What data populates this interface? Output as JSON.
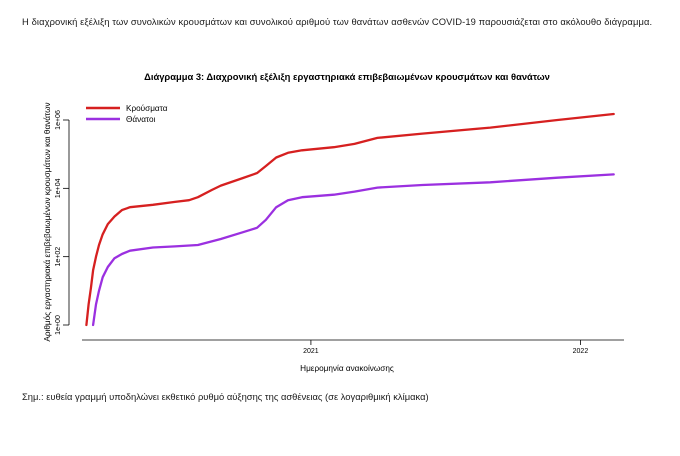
{
  "intro_text": "Η διαχρονική εξέλιξη των συνολικών κρουσμάτων και συνολικού αριθμού των θανάτων ασθενών COVID-19 παρουσιάζεται στο ακόλουθο διάγραμμα.",
  "note_text": "Σημ.: ευθεία γραμμή υποδηλώνει εκθετικό ρυθμό αύξησης της ασθένειας (σε λογαριθμική κλίμακα)",
  "colors": {
    "cases": "#d62020",
    "deaths": "#9b30e0",
    "axis": "#000000"
  },
  "chart_data": {
    "type": "line",
    "title": "Διάγραμμα 3: Διαχρονική εξέλιξη εργαστηριακά επιβεβαιωμένων κρουσμάτων και θανάτων",
    "xlabel": "Ημερομηνία ανακοίνωσης",
    "ylabel": "Αριθμός εργαστηριακά επιβεβαιωμένων κρουσμάτων και θανάτων",
    "y_scale": "log10",
    "ylim": [
      1,
      1000000
    ],
    "xlim": [
      "2020-02-26",
      "2022-03-01"
    ],
    "x_ticks": [
      {
        "date": "2021-01-01",
        "label": "2021"
      },
      {
        "date": "2022-01-01",
        "label": "2022"
      }
    ],
    "y_ticks": [
      {
        "value": 1,
        "label": "1e+00"
      },
      {
        "value": 100,
        "label": "1e+02"
      },
      {
        "value": 10000,
        "label": "1e+04"
      },
      {
        "value": 1000000,
        "label": "1e+06"
      }
    ],
    "grid": false,
    "legend_position": "top-left",
    "series": [
      {
        "name": "Κρούσματα",
        "points": [
          [
            "2020-03-03",
            1
          ],
          [
            "2020-03-06",
            4
          ],
          [
            "2020-03-09",
            12
          ],
          [
            "2020-03-12",
            40
          ],
          [
            "2020-03-16",
            100
          ],
          [
            "2020-03-20",
            220
          ],
          [
            "2020-03-25",
            450
          ],
          [
            "2020-04-01",
            900
          ],
          [
            "2020-04-10",
            1500
          ],
          [
            "2020-04-20",
            2300
          ],
          [
            "2020-05-01",
            2800
          ],
          [
            "2020-06-01",
            3300
          ],
          [
            "2020-07-01",
            4000
          ],
          [
            "2020-07-20",
            4500
          ],
          [
            "2020-08-01",
            5500
          ],
          [
            "2020-08-20",
            9000
          ],
          [
            "2020-09-01",
            12000
          ],
          [
            "2020-10-01",
            20000
          ],
          [
            "2020-10-20",
            28000
          ],
          [
            "2020-11-01",
            45000
          ],
          [
            "2020-11-15",
            80000
          ],
          [
            "2020-12-01",
            110000
          ],
          [
            "2020-12-20",
            130000
          ],
          [
            "2021-02-01",
            160000
          ],
          [
            "2021-03-01",
            200000
          ],
          [
            "2021-04-01",
            300000
          ],
          [
            "2021-06-01",
            400000
          ],
          [
            "2021-09-01",
            600000
          ],
          [
            "2021-12-01",
            1000000
          ],
          [
            "2022-02-15",
            1500000
          ]
        ]
      },
      {
        "name": "Θάνατοι",
        "points": [
          [
            "2020-03-12",
            1
          ],
          [
            "2020-03-16",
            4
          ],
          [
            "2020-03-20",
            10
          ],
          [
            "2020-03-25",
            25
          ],
          [
            "2020-04-01",
            50
          ],
          [
            "2020-04-10",
            90
          ],
          [
            "2020-04-20",
            120
          ],
          [
            "2020-05-01",
            150
          ],
          [
            "2020-06-01",
            185
          ],
          [
            "2020-07-01",
            200
          ],
          [
            "2020-08-01",
            220
          ],
          [
            "2020-09-01",
            330
          ],
          [
            "2020-10-01",
            520
          ],
          [
            "2020-10-20",
            700
          ],
          [
            "2020-11-01",
            1200
          ],
          [
            "2020-11-15",
            2800
          ],
          [
            "2020-12-01",
            4500
          ],
          [
            "2020-12-20",
            5500
          ],
          [
            "2021-02-01",
            6500
          ],
          [
            "2021-03-01",
            8000
          ],
          [
            "2021-04-01",
            10500
          ],
          [
            "2021-06-01",
            12500
          ],
          [
            "2021-09-01",
            15000
          ],
          [
            "2021-12-01",
            20500
          ],
          [
            "2022-02-15",
            25500
          ]
        ]
      }
    ]
  }
}
